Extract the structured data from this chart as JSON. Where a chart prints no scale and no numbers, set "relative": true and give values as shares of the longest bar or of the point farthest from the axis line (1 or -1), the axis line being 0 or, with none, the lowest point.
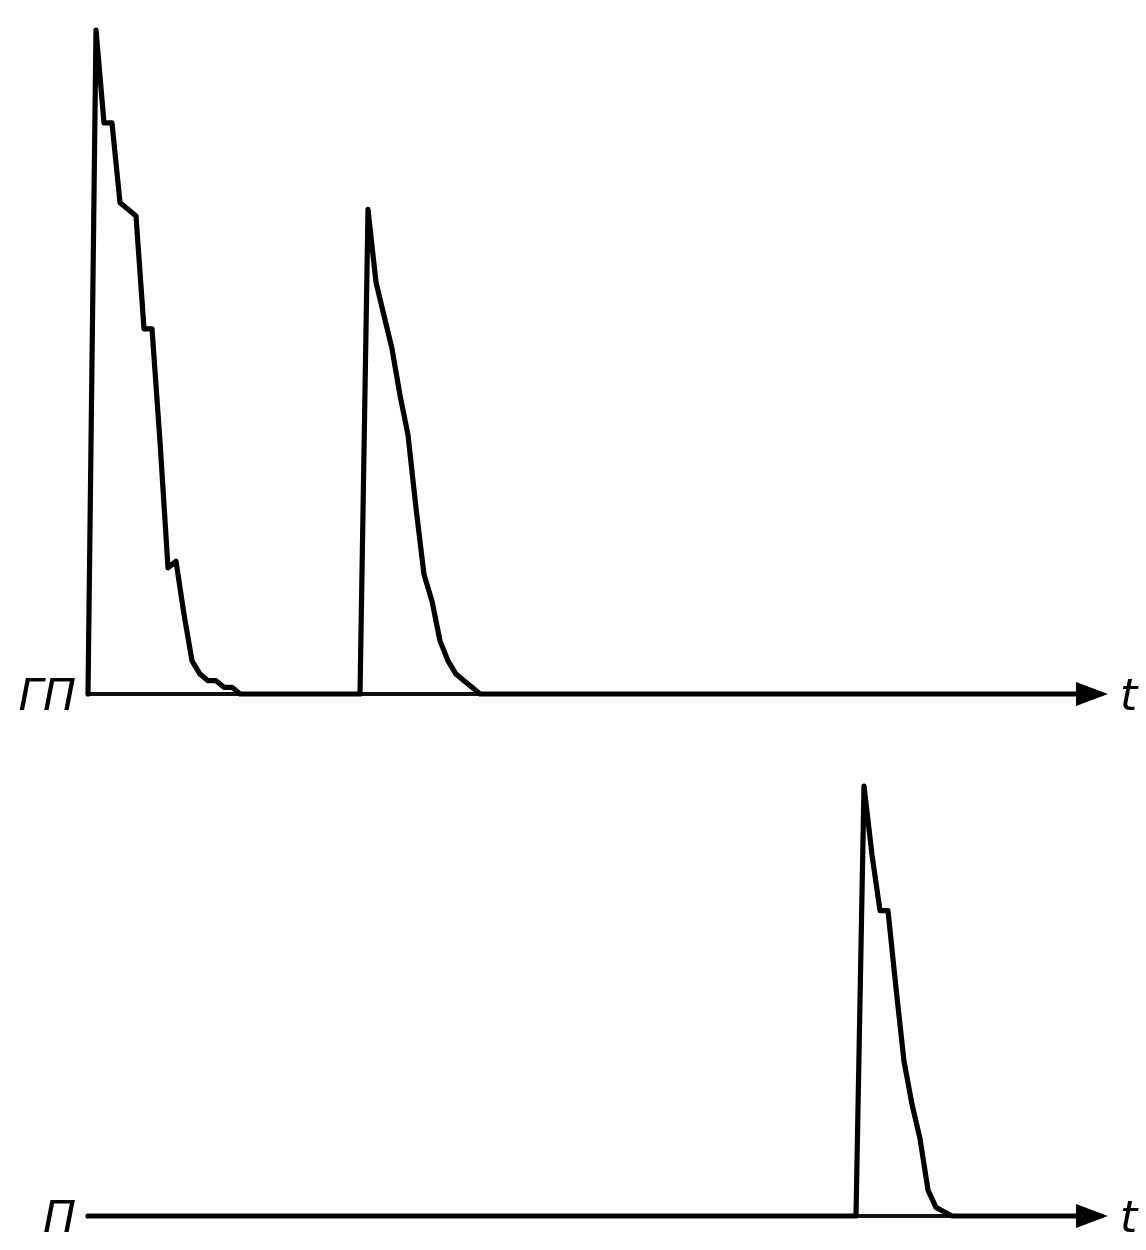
{
  "chart_data": [
    {
      "type": "line",
      "ylabel": "ГП",
      "xlabel": "t",
      "relative": true,
      "line_style": "solid",
      "categories": [
        null,
        null,
        null,
        null,
        null,
        null,
        null,
        null,
        null,
        null,
        null,
        null,
        null,
        null,
        null,
        null,
        null,
        null,
        null,
        null,
        null,
        null,
        null,
        null,
        null,
        null,
        null,
        null,
        null,
        null,
        null,
        null,
        null,
        null,
        null,
        null,
        null,
        null,
        null,
        null,
        null,
        null,
        null,
        null,
        null,
        null,
        null,
        null,
        null,
        null,
        null,
        null,
        null,
        null,
        null,
        null,
        null,
        null,
        null,
        null,
        null,
        null,
        null,
        null,
        null,
        null,
        null,
        null,
        null,
        null,
        null,
        null,
        null,
        null,
        null,
        null,
        null,
        null,
        null,
        null,
        null,
        null,
        null,
        null,
        null,
        null,
        null,
        null,
        null,
        null,
        null,
        null,
        null,
        null,
        null,
        null,
        null,
        null,
        null,
        null,
        null,
        null,
        null,
        null,
        null,
        null,
        null,
        null,
        null,
        null,
        null,
        null,
        null,
        null,
        null,
        null,
        null,
        null,
        null,
        null,
        null,
        null,
        null,
        null,
        null,
        null
      ],
      "series": [
        {
          "color": "#000000",
          "values": [
            0,
            1,
            0.86,
            0.86,
            0.74,
            0.73,
            0.72,
            0.55,
            0.55,
            0.38,
            0.19,
            0.2,
            0.12,
            0.05,
            0.03,
            0.02,
            0.02,
            0.01,
            0.01,
            0,
            0,
            0,
            0,
            0,
            0,
            0,
            0,
            0,
            0,
            0,
            0,
            0,
            0,
            0,
            0,
            0.73,
            0.62,
            0.57,
            0.52,
            0.45,
            0.39,
            0.28,
            0.18,
            0.14,
            0.08,
            0.05,
            0.03,
            0.02,
            0.01,
            0,
            0,
            0,
            0,
            0,
            0,
            0,
            0,
            0,
            0,
            0,
            0,
            0,
            0,
            0,
            0,
            0,
            0,
            0,
            0,
            0,
            0,
            0,
            0,
            0,
            0,
            0,
            0,
            0,
            0,
            0,
            0,
            0,
            0,
            0,
            0,
            0,
            0,
            0,
            0,
            0,
            0,
            0,
            0,
            0,
            0,
            0,
            0,
            0,
            0,
            0,
            0,
            0,
            0,
            0,
            0,
            0,
            0,
            0,
            0,
            0,
            0,
            0,
            0,
            0,
            0,
            0,
            0,
            0,
            0,
            0,
            0,
            0,
            0,
            0,
            0,
            0
          ]
        }
      ]
    },
    {
      "type": "line",
      "ylabel": "П",
      "xlabel": "t",
      "relative": true,
      "line_style": "solid",
      "categories": [
        null,
        null,
        null,
        null,
        null,
        null,
        null,
        null,
        null,
        null,
        null,
        null,
        null,
        null,
        null,
        null,
        null,
        null,
        null,
        null,
        null,
        null,
        null,
        null,
        null,
        null,
        null,
        null,
        null,
        null,
        null,
        null,
        null,
        null,
        null,
        null,
        null,
        null,
        null,
        null,
        null,
        null,
        null,
        null,
        null,
        null,
        null,
        null,
        null,
        null,
        null,
        null,
        null,
        null,
        null,
        null,
        null,
        null,
        null,
        null,
        null,
        null,
        null,
        null,
        null,
        null,
        null,
        null,
        null,
        null,
        null,
        null,
        null,
        null,
        null,
        null,
        null,
        null,
        null,
        null,
        null,
        null,
        null,
        null,
        null,
        null,
        null,
        null,
        null,
        null,
        null,
        null,
        null,
        null,
        null,
        null,
        null,
        null,
        null,
        null,
        null,
        null,
        null,
        null,
        null,
        null,
        null,
        null,
        null,
        null,
        null,
        null,
        null,
        null,
        null,
        null,
        null,
        null,
        null,
        null,
        null,
        null,
        null,
        null,
        null,
        null
      ],
      "series": [
        {
          "color": "#000000",
          "values": [
            0,
            0,
            0,
            0,
            0,
            0,
            0,
            0,
            0,
            0,
            0,
            0,
            0,
            0,
            0,
            0,
            0,
            0,
            0,
            0,
            0,
            0,
            0,
            0,
            0,
            0,
            0,
            0,
            0,
            0,
            0,
            0,
            0,
            0,
            0,
            0,
            0,
            0,
            0,
            0,
            0,
            0,
            0,
            0,
            0,
            0,
            0,
            0,
            0,
            0,
            0,
            0,
            0,
            0,
            0,
            0,
            0,
            0,
            0,
            0,
            0,
            0,
            0,
            0,
            0,
            0,
            0,
            0,
            0,
            0,
            0,
            0,
            0,
            0,
            0,
            0,
            0,
            0,
            0,
            0,
            0,
            0,
            0,
            0,
            0,
            0,
            0,
            0,
            0,
            0,
            0,
            0,
            0,
            0,
            0,
            0,
            0,
            1,
            0.84,
            0.71,
            0.71,
            0.53,
            0.36,
            0.26,
            0.18,
            0.06,
            0.02,
            0.01,
            0,
            0,
            0,
            0,
            0,
            0,
            0,
            0,
            0,
            0,
            0,
            0,
            0,
            0,
            0,
            0,
            0,
            0
          ]
        }
      ]
    }
  ]
}
